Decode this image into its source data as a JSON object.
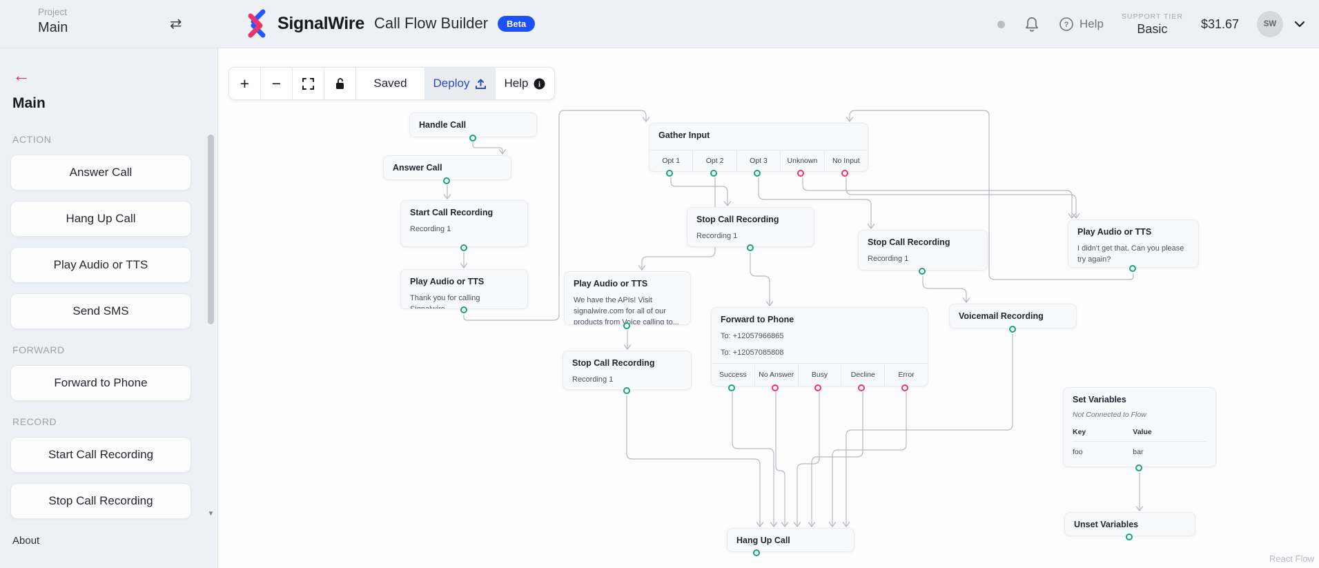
{
  "project": {
    "label": "Project",
    "value": "Main"
  },
  "header": {
    "brand": "SignalWire",
    "app_title": "Call Flow Builder",
    "beta": "Beta",
    "help_label": "Help",
    "support_tier_label": "SUPPORT TIER",
    "support_tier_value": "Basic",
    "balance": "$31.67",
    "avatar_initials": "SW"
  },
  "toolbar": {
    "zoom_in_label": "+",
    "zoom_out_label": "−",
    "saved_label": "Saved",
    "deploy_label": "Deploy",
    "help_label": "Help"
  },
  "sidebar": {
    "title": "Main",
    "sections": [
      {
        "label": "ACTION",
        "items": [
          "Answer Call",
          "Hang Up Call",
          "Play Audio or TTS",
          "Send SMS"
        ]
      },
      {
        "label": "FORWARD",
        "items": [
          "Forward to Phone"
        ]
      },
      {
        "label": "RECORD",
        "items": [
          "Start Call Recording",
          "Stop Call Recording"
        ]
      }
    ],
    "about_label": "About"
  },
  "canvas": {
    "attribution": "React Flow",
    "nodes": [
      {
        "id": "handle_call",
        "title": "Handle Call",
        "output": "teal"
      },
      {
        "id": "answer_call",
        "title": "Answer Call",
        "output": "teal"
      },
      {
        "id": "start_rec",
        "title": "Start Call Recording",
        "lines": [
          "Recording 1"
        ],
        "output": "teal"
      },
      {
        "id": "tts_thanks",
        "title": "Play Audio or TTS",
        "lines": [
          "Thank you for calling Signalwire."
        ],
        "output": "teal"
      },
      {
        "id": "gather",
        "title": "Gather Input",
        "options": [
          {
            "label": "Opt 1",
            "color": "teal"
          },
          {
            "label": "Opt 2",
            "color": "teal"
          },
          {
            "label": "Opt 3",
            "color": "teal"
          },
          {
            "label": "Unknown",
            "color": "pink"
          },
          {
            "label": "No Input",
            "color": "pink"
          }
        ]
      },
      {
        "id": "stop_a",
        "title": "Stop Call Recording",
        "lines": [
          "Recording 1"
        ],
        "output": "teal"
      },
      {
        "id": "stop_b",
        "title": "Stop Call Recording",
        "lines": [
          "Recording 1"
        ],
        "output": "teal"
      },
      {
        "id": "tts_apis",
        "title": "Play Audio or TTS",
        "lines": [
          "We have the APIs! Visit signalwire.com for all of our products from Voice calling to..."
        ],
        "output": "teal"
      },
      {
        "id": "stop_c",
        "title": "Stop Call Recording",
        "lines": [
          "Recording 1"
        ],
        "output": "teal"
      },
      {
        "id": "forward",
        "title": "Forward to Phone",
        "lines": [
          "To: +12057966865",
          "To: +12057085808"
        ],
        "options": [
          {
            "label": "Success",
            "color": "teal"
          },
          {
            "label": "No Answer",
            "color": "pink"
          },
          {
            "label": "Busy",
            "color": "pink"
          },
          {
            "label": "Decline",
            "color": "pink"
          },
          {
            "label": "Error",
            "color": "pink"
          }
        ]
      },
      {
        "id": "voicemail",
        "title": "Voicemail Recording",
        "output": "teal"
      },
      {
        "id": "tts_retry",
        "title": "Play Audio or TTS",
        "lines": [
          "I didn't get that. Can you please try again?"
        ],
        "output": "teal"
      },
      {
        "id": "set_vars",
        "title": "Set Variables",
        "note": "Not Connected to Flow",
        "table": {
          "headers": [
            "Key",
            "Value"
          ],
          "rows": [
            [
              "foo",
              "bar"
            ]
          ]
        },
        "output": "teal"
      },
      {
        "id": "unset_vars",
        "title": "Unset Variables",
        "output": "teal"
      },
      {
        "id": "hang_up",
        "title": "Hang Up Call",
        "output": "teal"
      }
    ]
  }
}
